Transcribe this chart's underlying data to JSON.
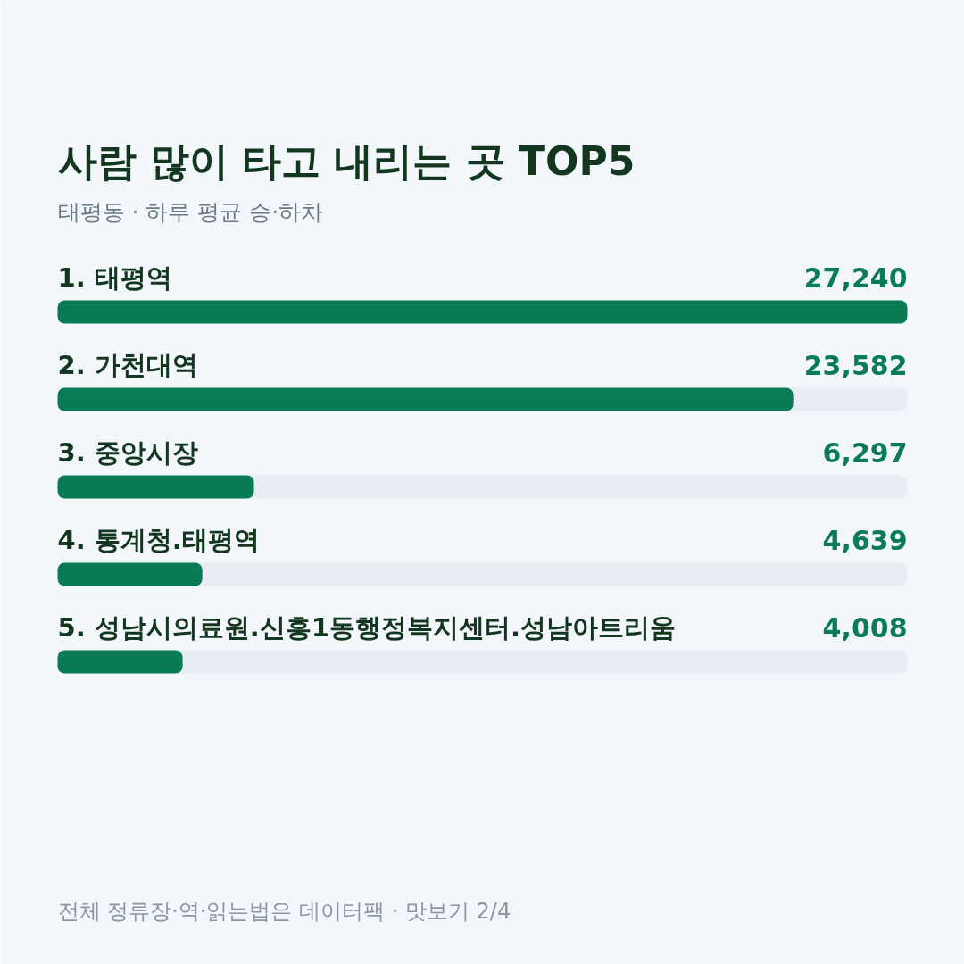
{
  "chart_data": {
    "type": "bar",
    "orientation": "horizontal",
    "title": "사람 많이 타고 내리는 곳 TOP5",
    "subtitle": "태평동 · 하루 평균 승·하차",
    "categories": [
      "1. 태평역",
      "2. 가천대역",
      "3. 중앙시장",
      "4. 통계청.태평역",
      "5. 성남시의료원.신흥1동행정복지센터.성남아트리움"
    ],
    "values": [
      27240,
      23582,
      6297,
      4639,
      4008
    ],
    "value_labels": [
      "27,240",
      "23,582",
      "6,297",
      "4,639",
      "4,008"
    ],
    "color": "#0a7c55",
    "annotations": [
      "전체 정류장·역·읽는법은 데이터팩 · 맛보기 2/4"
    ]
  }
}
